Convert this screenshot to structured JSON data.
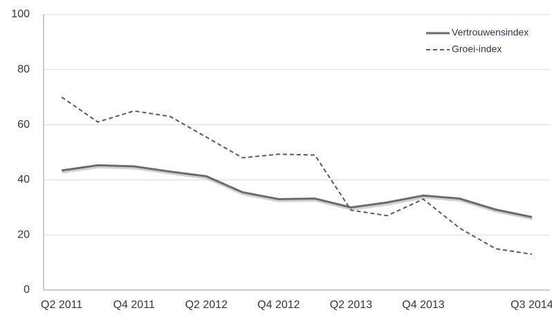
{
  "chart_data": {
    "type": "line",
    "categories": [
      "Q2 2011",
      null,
      "Q4 2011",
      null,
      "Q2 2012",
      null,
      "Q4 2012",
      null,
      "Q2 2013",
      null,
      "Q4 2013",
      null,
      null,
      "Q3 2014"
    ],
    "series": [
      {
        "name": "Vertrouwensindex",
        "color": "#6b6b6b",
        "dash": false,
        "values": [
          43.4,
          45.3,
          44.9,
          43,
          41.3,
          35.5,
          33,
          33.2,
          30,
          31.8,
          34.3,
          33.2,
          29.2,
          26.5
        ]
      },
      {
        "name": "Groei-index",
        "color": "#595959",
        "dash": true,
        "values": [
          70,
          61,
          65,
          63,
          55.5,
          48,
          49.3,
          49,
          29,
          27,
          33,
          22.5,
          15,
          13
        ]
      }
    ],
    "ylim": [
      0,
      100
    ],
    "yticks": [
      0,
      20,
      40,
      60,
      80,
      100
    ],
    "grid": true,
    "legend": "upper right"
  }
}
